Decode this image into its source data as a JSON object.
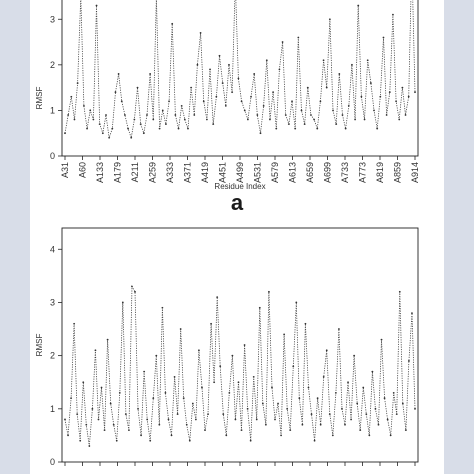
{
  "figure": {
    "panel_label": "a"
  },
  "chart_data": [
    {
      "type": "line",
      "ylabel": "RMSF",
      "xlabel": "Residue Index",
      "ylim": [
        0,
        4.3
      ],
      "yticks": [
        0,
        1,
        2,
        3
      ],
      "x_tick_labels": [
        "A31",
        "A60",
        "A133",
        "A179",
        "A211",
        "A259",
        "A333",
        "A371",
        "A419",
        "A451",
        "A499",
        "A531",
        "A579",
        "A613",
        "A659",
        "A699",
        "A733",
        "A773",
        "A819",
        "A859",
        "A914"
      ],
      "grid": false,
      "values": [
        0.5,
        0.9,
        1.3,
        0.8,
        1.6,
        3.5,
        1.1,
        0.6,
        1.0,
        0.8,
        3.3,
        0.7,
        0.5,
        0.9,
        0.4,
        0.6,
        1.4,
        1.8,
        1.2,
        0.9,
        0.6,
        0.4,
        0.8,
        1.5,
        0.7,
        0.5,
        0.9,
        1.8,
        0.8,
        3.5,
        0.6,
        1.0,
        0.7,
        1.2,
        2.9,
        0.9,
        0.6,
        1.1,
        0.8,
        0.6,
        1.5,
        0.9,
        2.0,
        2.7,
        1.2,
        0.8,
        1.9,
        0.7,
        1.3,
        2.2,
        1.6,
        1.1,
        2.0,
        1.4,
        3.8,
        1.7,
        1.2,
        1.0,
        0.8,
        1.3,
        1.8,
        0.9,
        0.5,
        1.1,
        2.1,
        0.8,
        1.4,
        0.6,
        1.9,
        2.5,
        0.9,
        0.7,
        1.2,
        0.6,
        2.6,
        1.0,
        0.7,
        1.5,
        0.9,
        0.8,
        0.6,
        1.2,
        2.1,
        1.5,
        3.0,
        1.0,
        0.7,
        1.8,
        0.9,
        0.6,
        1.1,
        2.0,
        0.8,
        3.3,
        1.3,
        0.8,
        2.1,
        1.6,
        1.0,
        0.6,
        1.3,
        2.6,
        0.9,
        1.4,
        3.1,
        1.2,
        0.8,
        1.5,
        0.9,
        1.3,
        4.3,
        1.4
      ]
    },
    {
      "type": "line",
      "ylabel": "RMSF",
      "ylim": [
        0,
        4.4
      ],
      "yticks": [
        0,
        1,
        2,
        3,
        4
      ],
      "grid": false,
      "values": [
        0.8,
        0.5,
        1.2,
        2.6,
        0.9,
        0.4,
        1.5,
        0.7,
        0.3,
        1.0,
        2.1,
        0.8,
        1.4,
        0.6,
        2.3,
        1.1,
        0.7,
        0.4,
        1.3,
        3.0,
        0.9,
        0.6,
        3.3,
        3.2,
        1.0,
        0.5,
        1.7,
        0.8,
        0.4,
        1.2,
        2.0,
        0.7,
        2.9,
        1.3,
        0.8,
        0.5,
        1.6,
        0.9,
        2.5,
        1.2,
        0.7,
        0.4,
        1.1,
        0.8,
        2.1,
        1.4,
        0.6,
        0.9,
        2.6,
        1.5,
        3.1,
        1.8,
        0.9,
        0.5,
        1.3,
        2.0,
        0.8,
        1.5,
        0.6,
        2.2,
        1.0,
        0.4,
        1.6,
        0.8,
        2.9,
        1.1,
        0.7,
        3.2,
        1.4,
        0.8,
        1.1,
        0.5,
        2.4,
        1.0,
        0.6,
        1.8,
        3.0,
        1.2,
        0.7,
        2.6,
        1.4,
        0.9,
        0.4,
        1.2,
        0.7,
        1.6,
        2.1,
        0.9,
        0.5,
        1.3,
        2.5,
        1.0,
        0.7,
        1.5,
        0.8,
        2.0,
        1.1,
        0.6,
        1.4,
        0.9,
        0.5,
        1.7,
        1.0,
        0.7,
        2.3,
        1.2,
        0.8,
        0.5,
        1.3,
        0.9,
        3.2,
        1.1,
        0.6,
        1.9,
        2.8,
        1.0
      ]
    }
  ]
}
